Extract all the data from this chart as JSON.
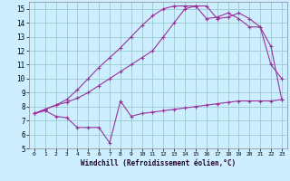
{
  "xlabel": "Windchill (Refroidissement éolien,°C)",
  "bg_color": "#cceeff",
  "line_color": "#993399",
  "grid_color": "#99cccc",
  "xlim": [
    -0.5,
    23.5
  ],
  "ylim": [
    5,
    15.5
  ],
  "xticks": [
    0,
    1,
    2,
    3,
    4,
    5,
    6,
    7,
    8,
    9,
    10,
    11,
    12,
    13,
    14,
    15,
    16,
    17,
    18,
    19,
    20,
    21,
    22,
    23
  ],
  "yticks": [
    5,
    6,
    7,
    8,
    9,
    10,
    11,
    12,
    13,
    14,
    15
  ],
  "line1_x": [
    0,
    1,
    2,
    3,
    4,
    5,
    6,
    7,
    8,
    9,
    10,
    11,
    12,
    13,
    14,
    15,
    16,
    17,
    18,
    19,
    20,
    21,
    22,
    23
  ],
  "line1_y": [
    7.5,
    7.7,
    7.3,
    7.2,
    6.5,
    6.5,
    6.5,
    5.4,
    8.4,
    7.3,
    7.5,
    7.6,
    7.7,
    7.8,
    7.9,
    8.0,
    8.1,
    8.2,
    8.3,
    8.4,
    8.4,
    8.4,
    8.4,
    8.5
  ],
  "line2_x": [
    0,
    1,
    2,
    3,
    4,
    5,
    6,
    7,
    8,
    9,
    10,
    11,
    12,
    13,
    14,
    15,
    16,
    17,
    18,
    19,
    20,
    21,
    22,
    23
  ],
  "line2_y": [
    7.5,
    7.8,
    8.1,
    8.3,
    8.6,
    9.0,
    9.5,
    10.0,
    10.5,
    11.0,
    11.5,
    12.0,
    13.0,
    14.0,
    15.0,
    15.2,
    15.2,
    14.3,
    14.4,
    14.7,
    14.3,
    13.7,
    11.0,
    10.0
  ],
  "line3_x": [
    0,
    1,
    2,
    3,
    4,
    5,
    6,
    7,
    8,
    9,
    10,
    11,
    12,
    13,
    14,
    15,
    16,
    17,
    18,
    19,
    20,
    21,
    22,
    23
  ],
  "line3_y": [
    7.5,
    7.8,
    8.1,
    8.5,
    9.2,
    10.0,
    10.8,
    11.5,
    12.2,
    13.0,
    13.8,
    14.5,
    15.0,
    15.2,
    15.2,
    15.2,
    14.3,
    14.4,
    14.7,
    14.3,
    13.7,
    13.7,
    12.3,
    8.5
  ]
}
